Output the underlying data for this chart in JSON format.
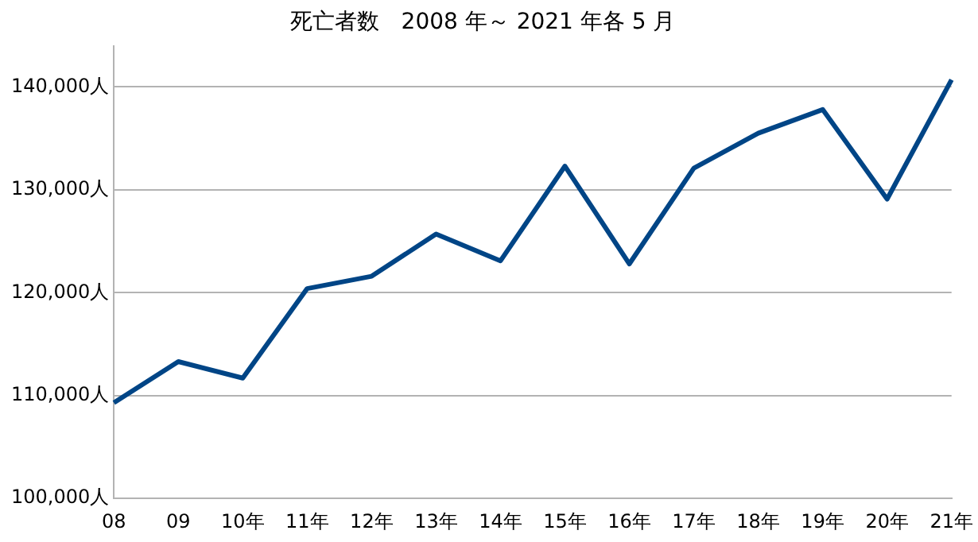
{
  "chart_data": {
    "type": "line",
    "title": "死亡者数　2008 年～ 2021 年各 5 月",
    "categories": [
      "08",
      "09",
      "10年",
      "11年",
      "12年",
      "13年",
      "14年",
      "15年",
      "16年",
      "17年",
      "18年",
      "19年",
      "20年",
      "21年"
    ],
    "series": [
      {
        "color": "#004586",
        "values": [
          109300,
          113300,
          111700,
          120400,
          121600,
          125700,
          123100,
          132300,
          122800,
          132100,
          135500,
          137800,
          129100,
          140700
        ]
      }
    ],
    "ylim": [
      100000,
      144000
    ],
    "yticks": [
      {
        "value": 100000,
        "label": "100,000人"
      },
      {
        "value": 110000,
        "label": "110,000人"
      },
      {
        "value": 120000,
        "label": "120,000人"
      },
      {
        "value": 130000,
        "label": "130,000人"
      },
      {
        "value": 140000,
        "label": "140,000人"
      }
    ],
    "grid": "y",
    "legend": false,
    "marker": "none",
    "line_style": "solid"
  }
}
